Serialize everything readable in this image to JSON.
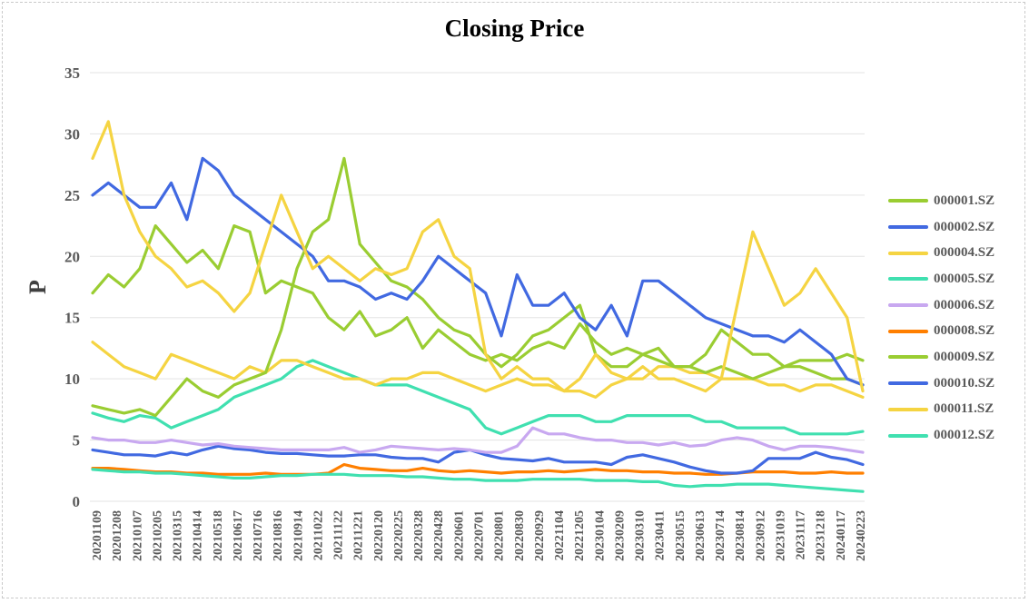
{
  "chart_data": {
    "type": "line",
    "title": "Closing Price",
    "xlabel": "",
    "ylabel": "P",
    "ylim": [
      0,
      35
    ],
    "yticks": [
      0,
      5,
      10,
      15,
      20,
      25,
      30,
      35
    ],
    "grid": "horizontal",
    "legend_position": "right",
    "x_tick_labels": [
      "20201109",
      "20201208",
      "20210107",
      "20210205",
      "20210315",
      "20210414",
      "20210518",
      "20210617",
      "20210716",
      "20210816",
      "20210914",
      "20211022",
      "20211122",
      "20211221",
      "20220120",
      "20220225",
      "20220328",
      "20220428",
      "20220601",
      "20220701",
      "20220801",
      "20220830",
      "20220929",
      "20221104",
      "20221205",
      "20230104",
      "20230209",
      "20230310",
      "20230411",
      "20230515",
      "20230613",
      "20230714",
      "20230814",
      "20230912",
      "20231019",
      "20231117",
      "20231218",
      "20240117",
      "20240223"
    ],
    "series": [
      {
        "name": "000001.SZ",
        "color": "#9acd32",
        "values": [
          17,
          18.5,
          17.5,
          19,
          22.5,
          21,
          19.5,
          20.5,
          19,
          22.5,
          22,
          17,
          18,
          17.5,
          17,
          15,
          14,
          15.5,
          13.5,
          14,
          15,
          12.5,
          14,
          13,
          12,
          11.5,
          12,
          11.5,
          12.5,
          13,
          12.5,
          14.5,
          13,
          12,
          12.5,
          12,
          11.5,
          11,
          11,
          10.5,
          11,
          10.5,
          10,
          10.5,
          11,
          11.5,
          11.5,
          11.5,
          12,
          11.5
        ]
      },
      {
        "name": "000002.SZ",
        "color": "#4169e1",
        "values": [
          25,
          26,
          25,
          24,
          24,
          26,
          23,
          28,
          27,
          25,
          24,
          23,
          22,
          21,
          20,
          18,
          18,
          17.5,
          16.5,
          17,
          16.5,
          18,
          20,
          19,
          18,
          17,
          13.5,
          18.5,
          16,
          16,
          17,
          15,
          14,
          16,
          13.5,
          18,
          18,
          17,
          16,
          15,
          14.5,
          14,
          13.5,
          13.5,
          13,
          14,
          13,
          12,
          10,
          9.5
        ]
      },
      {
        "name": "000004.SZ",
        "color": "#f5d442",
        "values": [
          28,
          31,
          25,
          22,
          20,
          19,
          17.5,
          18,
          17,
          15.5,
          17,
          21,
          25,
          22,
          19,
          20,
          19,
          18,
          19,
          18.5,
          19,
          22,
          23,
          20,
          19,
          12,
          10,
          11,
          10,
          10,
          9,
          10,
          12,
          10.5,
          10,
          11,
          10,
          10,
          9.5,
          9,
          10,
          16,
          22,
          19,
          16,
          17,
          19,
          17,
          15,
          9
        ]
      },
      {
        "name": "000005.SZ",
        "color": "#40e0b0",
        "values": [
          7.2,
          6.8,
          6.5,
          7,
          6.8,
          6,
          6.5,
          7,
          7.5,
          8.5,
          9,
          9.5,
          10,
          11,
          11.5,
          11,
          10.5,
          10,
          9.5,
          9.5,
          9.5,
          9,
          8.5,
          8,
          7.5,
          6,
          5.5,
          6,
          6.5,
          7,
          7,
          7,
          6.5,
          6.5,
          7,
          7,
          7,
          7,
          7,
          6.5,
          6.5,
          6,
          6,
          6,
          6,
          5.5,
          5.5,
          5.5,
          5.5,
          5.7
        ]
      },
      {
        "name": "000006.SZ",
        "color": "#c8a8f0",
        "values": [
          5.2,
          5,
          5,
          4.8,
          4.8,
          5,
          4.8,
          4.6,
          4.7,
          4.5,
          4.4,
          4.3,
          4.2,
          4.2,
          4.2,
          4.2,
          4.4,
          4,
          4.2,
          4.5,
          4.4,
          4.3,
          4.2,
          4.3,
          4.2,
          4,
          4,
          4.5,
          6,
          5.5,
          5.5,
          5.2,
          5,
          5,
          4.8,
          4.8,
          4.6,
          4.8,
          4.5,
          4.6,
          5,
          5.2,
          5,
          4.5,
          4.2,
          4.5,
          4.5,
          4.4,
          4.2,
          4
        ]
      },
      {
        "name": "000008.SZ",
        "color": "#ff7f00",
        "values": [
          2.7,
          2.7,
          2.6,
          2.5,
          2.4,
          2.4,
          2.3,
          2.3,
          2.2,
          2.2,
          2.2,
          2.3,
          2.2,
          2.2,
          2.2,
          2.3,
          3,
          2.7,
          2.6,
          2.5,
          2.5,
          2.7,
          2.5,
          2.4,
          2.5,
          2.4,
          2.3,
          2.4,
          2.4,
          2.5,
          2.4,
          2.5,
          2.6,
          2.5,
          2.5,
          2.4,
          2.4,
          2.3,
          2.3,
          2.2,
          2.2,
          2.3,
          2.4,
          2.4,
          2.4,
          2.3,
          2.3,
          2.4,
          2.3,
          2.3
        ]
      },
      {
        "name": "000009.SZ",
        "color": "#9acd32",
        "values": [
          7.8,
          7.5,
          7.2,
          7.5,
          7,
          8.5,
          10,
          9,
          8.5,
          9.5,
          10,
          10.5,
          14,
          19,
          22,
          23,
          28,
          21,
          19.5,
          18,
          17.5,
          16.5,
          15,
          14,
          13.5,
          12,
          11,
          12,
          13.5,
          14,
          15,
          16,
          12,
          11,
          11,
          12,
          12.5,
          11,
          11,
          12,
          14,
          13,
          12,
          12,
          11,
          11,
          10.5,
          10,
          10,
          9.5
        ]
      },
      {
        "name": "000010.SZ",
        "color": "#4169e1",
        "values": [
          4.2,
          4,
          3.8,
          3.8,
          3.7,
          4,
          3.8,
          4.2,
          4.5,
          4.3,
          4.2,
          4,
          3.9,
          3.9,
          3.8,
          3.7,
          3.7,
          3.8,
          3.8,
          3.6,
          3.5,
          3.5,
          3.2,
          4,
          4.2,
          3.8,
          3.5,
          3.4,
          3.3,
          3.5,
          3.2,
          3.2,
          3.2,
          3,
          3.6,
          3.8,
          3.5,
          3.2,
          2.8,
          2.5,
          2.3,
          2.3,
          2.5,
          3.5,
          3.5,
          3.5,
          4,
          3.6,
          3.4,
          3
        ]
      },
      {
        "name": "000011.SZ",
        "color": "#f5d442",
        "values": [
          13,
          12,
          11,
          10.5,
          10,
          12,
          11.5,
          11,
          10.5,
          10,
          11,
          10.5,
          11.5,
          11.5,
          11,
          10.5,
          10,
          10,
          9.5,
          10,
          10,
          10.5,
          10.5,
          10,
          9.5,
          9,
          9.5,
          10,
          9.5,
          9.5,
          9,
          9,
          8.5,
          9.5,
          10,
          10,
          11,
          11,
          10.5,
          10.5,
          10,
          10,
          10,
          9.5,
          9.5,
          9,
          9.5,
          9.5,
          9,
          8.5
        ]
      },
      {
        "name": "000012.SZ",
        "color": "#40e0b0",
        "values": [
          2.6,
          2.5,
          2.4,
          2.4,
          2.3,
          2.3,
          2.2,
          2.1,
          2,
          1.9,
          1.9,
          2,
          2.1,
          2.1,
          2.2,
          2.2,
          2.2,
          2.1,
          2.1,
          2.1,
          2,
          2,
          1.9,
          1.8,
          1.8,
          1.7,
          1.7,
          1.7,
          1.8,
          1.8,
          1.8,
          1.8,
          1.7,
          1.7,
          1.7,
          1.6,
          1.6,
          1.3,
          1.2,
          1.3,
          1.3,
          1.4,
          1.4,
          1.4,
          1.3,
          1.2,
          1.1,
          1,
          0.9,
          0.8
        ]
      }
    ]
  }
}
